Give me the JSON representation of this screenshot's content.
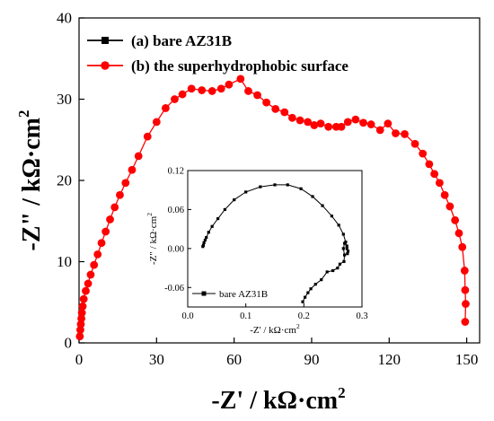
{
  "chart_data": [
    {
      "type": "line",
      "title": "",
      "xlabel": "-Z' / kΩ·cm",
      "xlabel_sup": "2",
      "ylabel": "-Z\" / kΩ·cm",
      "ylabel_sup": "2",
      "xlim": [
        0,
        155
      ],
      "ylim": [
        0,
        40
      ],
      "xticks": [
        0,
        30,
        60,
        90,
        120,
        150
      ],
      "yticks": [
        0,
        10,
        20,
        30,
        40
      ],
      "grid": false,
      "legend_position": "top-left",
      "legend": [
        {
          "label": "(a) bare AZ31B",
          "color": "#000000",
          "marker": "square"
        },
        {
          "label": "(b) the superhydrophobic surface",
          "color": "#ff0000",
          "marker": "circle"
        }
      ],
      "series": [
        {
          "name": "(b) the superhydrophobic surface",
          "color": "#ff0000",
          "marker": "circle",
          "points": [
            [
              0.3,
              0.8
            ],
            [
              0.5,
              1.6
            ],
            [
              0.7,
              2.3
            ],
            [
              0.9,
              3.0
            ],
            [
              1.1,
              3.7
            ],
            [
              1.4,
              4.5
            ],
            [
              1.8,
              5.4
            ],
            [
              2.6,
              6.4
            ],
            [
              3.5,
              7.3
            ],
            [
              4.5,
              8.4
            ],
            [
              5.8,
              9.6
            ],
            [
              7.2,
              10.9
            ],
            [
              8.7,
              12.3
            ],
            [
              10.3,
              13.7
            ],
            [
              12.0,
              15.2
            ],
            [
              13.8,
              16.7
            ],
            [
              15.8,
              18.2
            ],
            [
              18.0,
              19.7
            ],
            [
              20.5,
              21.3
            ],
            [
              23.0,
              23.0
            ],
            [
              26.5,
              25.4
            ],
            [
              30.0,
              27.2
            ],
            [
              33.5,
              28.9
            ],
            [
              37.0,
              30.0
            ],
            [
              40.0,
              30.6
            ],
            [
              43.5,
              31.3
            ],
            [
              47.5,
              31.1
            ],
            [
              51.5,
              31.0
            ],
            [
              55.0,
              31.3
            ],
            [
              58.0,
              31.8
            ],
            [
              62.5,
              32.5
            ],
            [
              65.5,
              31.0
            ],
            [
              69.0,
              30.5
            ],
            [
              72.5,
              29.6
            ],
            [
              76.0,
              28.8
            ],
            [
              79.5,
              28.4
            ],
            [
              82.5,
              27.7
            ],
            [
              85.5,
              27.4
            ],
            [
              88.5,
              27.2
            ],
            [
              91.0,
              26.8
            ],
            [
              93.5,
              27.0
            ],
            [
              96.5,
              26.6
            ],
            [
              99.5,
              26.6
            ],
            [
              101.5,
              26.6
            ],
            [
              104.0,
              27.2
            ],
            [
              107.0,
              27.5
            ],
            [
              110.0,
              27.1
            ],
            [
              113.0,
              26.9
            ],
            [
              116.5,
              26.2
            ],
            [
              119.5,
              27.0
            ],
            [
              122.5,
              25.8
            ],
            [
              126.0,
              25.7
            ],
            [
              130.0,
              24.5
            ],
            [
              133.0,
              23.3
            ],
            [
              135.5,
              22.0
            ],
            [
              137.5,
              20.8
            ],
            [
              139.5,
              19.7
            ],
            [
              141.5,
              18.2
            ],
            [
              143.5,
              16.8
            ],
            [
              145.5,
              15.1
            ],
            [
              147.0,
              13.5
            ],
            [
              148.3,
              11.8
            ],
            [
              149.2,
              8.9
            ],
            [
              149.4,
              6.5
            ],
            [
              149.6,
              4.8
            ],
            [
              149.4,
              2.6
            ]
          ]
        }
      ]
    },
    {
      "type": "line",
      "title": "",
      "xlabel": "-Z' / kΩ·cm",
      "xlabel_sup": "2",
      "ylabel": "-Z\" / kΩ·cm",
      "ylabel_sup": "2",
      "xlim": [
        0.0,
        0.3
      ],
      "ylim": [
        -0.09,
        0.12
      ],
      "xticks": [
        0.0,
        0.1,
        0.2,
        0.3
      ],
      "xtick_labels": [
        "0.0",
        "0.1",
        "0.2",
        "0.3"
      ],
      "yticks": [
        -0.06,
        0.0,
        0.06,
        0.12
      ],
      "ytick_labels": [
        "-0.06",
        "0.00",
        "0.06",
        "0.12"
      ],
      "grid": false,
      "legend_position": "bottom-left",
      "legend": [
        {
          "label": "bare AZ31B",
          "color": "#000000",
          "marker": "square"
        }
      ],
      "series": [
        {
          "name": "bare AZ31B",
          "color": "#000000",
          "marker": "square",
          "points": [
            [
              0.026,
              0.003
            ],
            [
              0.027,
              0.005
            ],
            [
              0.028,
              0.009
            ],
            [
              0.03,
              0.013
            ],
            [
              0.032,
              0.017
            ],
            [
              0.036,
              0.025
            ],
            [
              0.042,
              0.034
            ],
            [
              0.052,
              0.046
            ],
            [
              0.064,
              0.06
            ],
            [
              0.08,
              0.075
            ],
            [
              0.1,
              0.087
            ],
            [
              0.125,
              0.095
            ],
            [
              0.15,
              0.098
            ],
            [
              0.172,
              0.098
            ],
            [
              0.195,
              0.092
            ],
            [
              0.215,
              0.08
            ],
            [
              0.232,
              0.066
            ],
            [
              0.248,
              0.05
            ],
            [
              0.26,
              0.036
            ],
            [
              0.268,
              0.022
            ],
            [
              0.272,
              0.01
            ],
            [
              0.274,
              0.0
            ],
            [
              0.275,
              -0.008
            ],
            [
              0.276,
              -0.004
            ],
            [
              0.274,
              0.004
            ],
            [
              0.27,
              0.008
            ],
            [
              0.268,
              0.0
            ],
            [
              0.27,
              -0.01
            ],
            [
              0.269,
              -0.02
            ],
            [
              0.262,
              -0.024
            ],
            [
              0.258,
              -0.03
            ],
            [
              0.25,
              -0.034
            ],
            [
              0.24,
              -0.036
            ],
            [
              0.23,
              -0.048
            ],
            [
              0.22,
              -0.055
            ],
            [
              0.212,
              -0.062
            ],
            [
              0.207,
              -0.068
            ],
            [
              0.202,
              -0.075
            ],
            [
              0.198,
              -0.082
            ]
          ]
        }
      ]
    }
  ]
}
